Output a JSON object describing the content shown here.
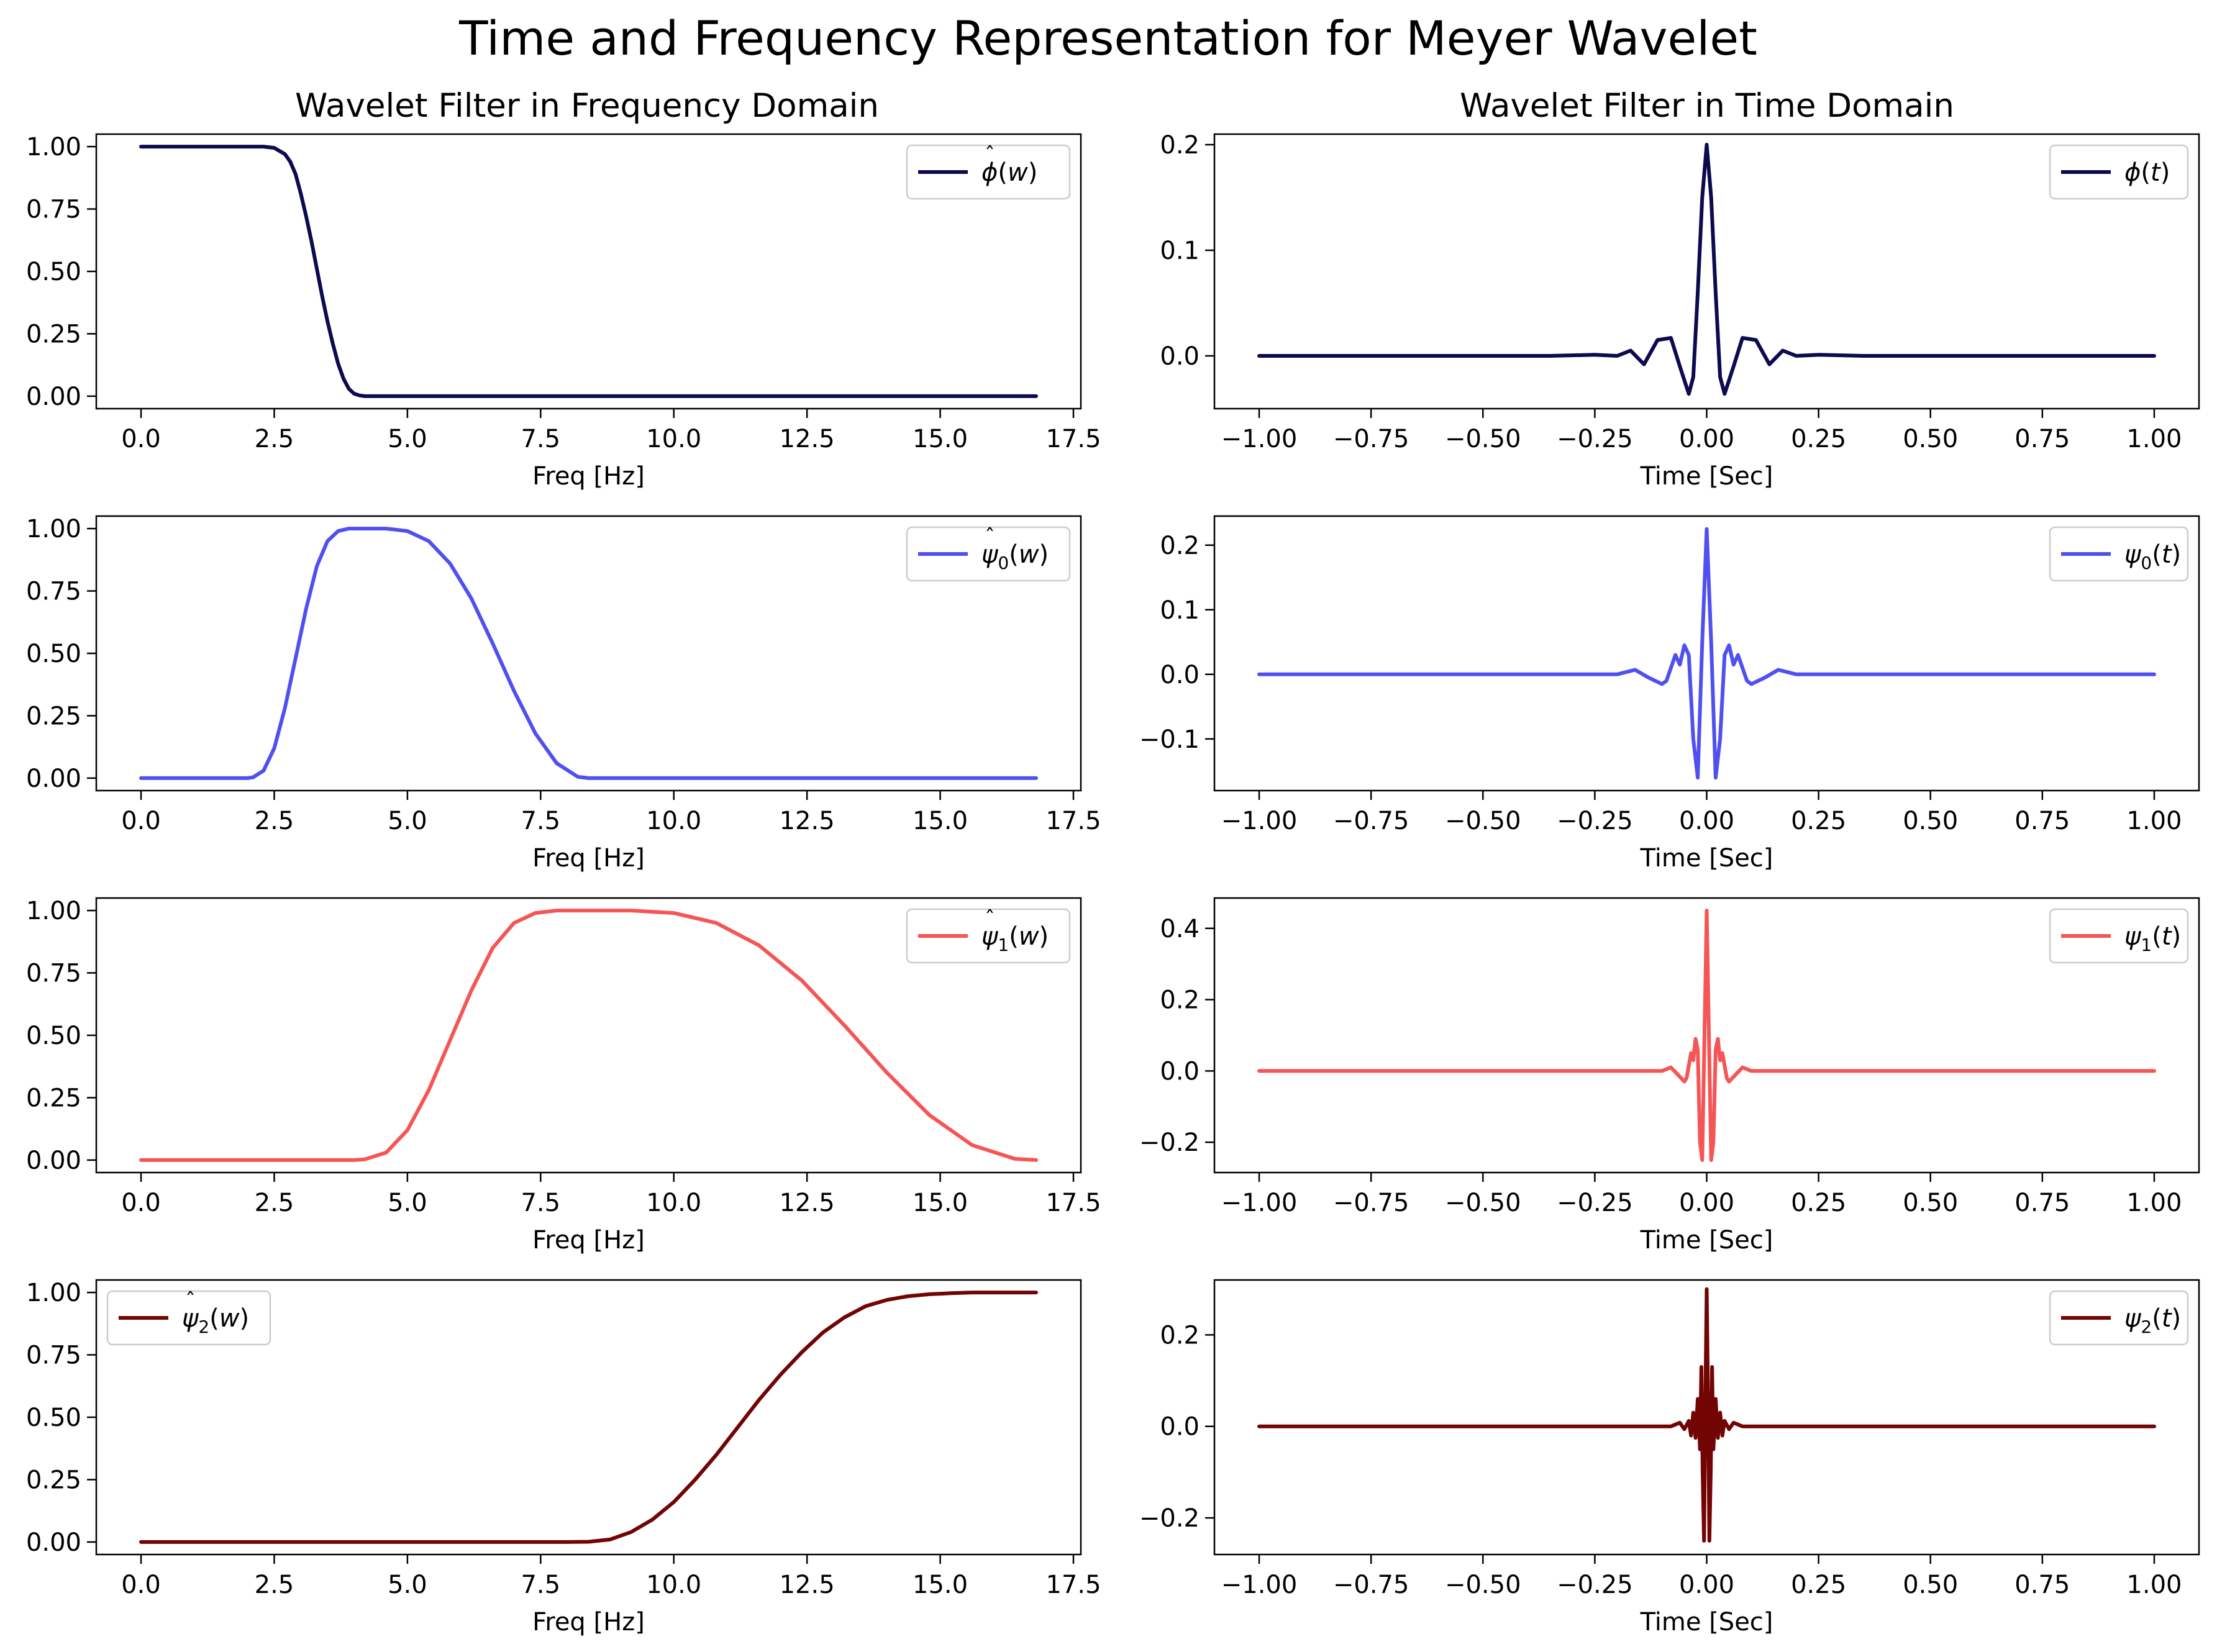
{
  "figure": {
    "title": "Time and Frequency Representation for Meyer Wavelet",
    "col_titles": [
      "Wavelet Filter in Frequency Domain",
      "Wavelet Filter in Time Domain"
    ]
  },
  "chart_data": [
    {
      "type": "line",
      "id": "phi_hat_w",
      "row": 0,
      "col": 0,
      "title": "Wavelet Filter in Frequency Domain",
      "xlabel": "Freq [Hz]",
      "ylabel": "",
      "xlim": [
        -0.84,
        17.64
      ],
      "ylim": [
        -0.05,
        1.05
      ],
      "xticks": [
        0,
        2.5,
        5,
        7.5,
        10,
        12.5,
        15,
        17.5
      ],
      "xtick_labels": [
        "0.0",
        "2.5",
        "5.0",
        "7.5",
        "10.0",
        "12.5",
        "15.0",
        "17.5"
      ],
      "yticks": [
        0,
        0.25,
        0.5,
        0.75,
        1.0
      ],
      "ytick_labels": [
        "0.00",
        "0.25",
        "0.50",
        "0.75",
        "1.00"
      ],
      "legend": "upper right",
      "grid": false,
      "series": [
        {
          "name": "phi_hat_w",
          "color": "#0d0a4f",
          "x": [
            0,
            1.0,
            2.0,
            2.1,
            2.3,
            2.5,
            2.7,
            2.8,
            2.9,
            3.0,
            3.1,
            3.2,
            3.3,
            3.4,
            3.5,
            3.6,
            3.7,
            3.8,
            3.9,
            4.0,
            4.1,
            4.2,
            4.5,
            6.0,
            8.0,
            10.0,
            12.0,
            14.0,
            16.8
          ],
          "y": [
            1,
            1,
            1,
            1,
            1,
            0.995,
            0.97,
            0.94,
            0.89,
            0.81,
            0.72,
            0.62,
            0.51,
            0.4,
            0.3,
            0.21,
            0.13,
            0.07,
            0.03,
            0.01,
            0.003,
            0,
            0,
            0,
            0,
            0,
            0,
            0,
            0
          ]
        }
      ]
    },
    {
      "type": "line",
      "id": "phi_t",
      "row": 0,
      "col": 1,
      "title": "Wavelet Filter in Time Domain",
      "xlabel": "Time [Sec]",
      "ylabel": "",
      "xlim": [
        -1.1,
        1.1
      ],
      "ylim": [
        -0.05,
        0.21
      ],
      "xticks": [
        -1,
        -0.75,
        -0.5,
        -0.25,
        0,
        0.25,
        0.5,
        0.75,
        1
      ],
      "xtick_labels": [
        "−1.00",
        "−0.75",
        "−0.50",
        "−0.25",
        "0.00",
        "0.25",
        "0.50",
        "0.75",
        "1.00"
      ],
      "yticks": [
        0,
        0.1,
        0.2
      ],
      "ytick_labels": [
        "0.0",
        "0.1",
        "0.2"
      ],
      "legend": "upper right",
      "grid": false,
      "series": [
        {
          "name": "phi_t",
          "color": "#0d0a4f",
          "x": [
            -1.0,
            -0.35,
            -0.25,
            -0.2,
            -0.17,
            -0.14,
            -0.11,
            -0.08,
            -0.06,
            -0.04,
            -0.03,
            -0.02,
            -0.01,
            0,
            0.01,
            0.02,
            0.03,
            0.04,
            0.06,
            0.08,
            0.11,
            0.14,
            0.17,
            0.2,
            0.25,
            0.35,
            1.0
          ],
          "y": [
            0,
            0,
            0.001,
            0.0,
            0.005,
            -0.008,
            0.015,
            0.017,
            -0.01,
            -0.036,
            -0.02,
            0.06,
            0.15,
            0.2,
            0.15,
            0.06,
            -0.02,
            -0.036,
            -0.01,
            0.017,
            0.015,
            -0.008,
            0.005,
            0.0,
            0.001,
            0,
            0
          ]
        }
      ]
    },
    {
      "type": "line",
      "id": "psi0_hat_w",
      "row": 1,
      "col": 0,
      "xlabel": "Freq [Hz]",
      "ylabel": "",
      "xlim": [
        -0.84,
        17.64
      ],
      "ylim": [
        -0.05,
        1.05
      ],
      "xticks": [
        0,
        2.5,
        5,
        7.5,
        10,
        12.5,
        15,
        17.5
      ],
      "xtick_labels": [
        "0.0",
        "2.5",
        "5.0",
        "7.5",
        "10.0",
        "12.5",
        "15.0",
        "17.5"
      ],
      "yticks": [
        0,
        0.25,
        0.5,
        0.75,
        1.0
      ],
      "ytick_labels": [
        "0.00",
        "0.25",
        "0.50",
        "0.75",
        "1.00"
      ],
      "legend": "upper right",
      "grid": false,
      "series": [
        {
          "name": "psi0_hat_w",
          "color": "#5050f0",
          "x": [
            0,
            1.0,
            2.0,
            2.1,
            2.3,
            2.5,
            2.7,
            2.9,
            3.1,
            3.3,
            3.5,
            3.7,
            3.9,
            4.2,
            4.6,
            5.0,
            5.4,
            5.8,
            6.2,
            6.6,
            7.0,
            7.4,
            7.8,
            8.2,
            8.4,
            10.0,
            13.0,
            16.8
          ],
          "y": [
            0,
            0,
            0,
            0.003,
            0.03,
            0.12,
            0.28,
            0.48,
            0.68,
            0.85,
            0.95,
            0.99,
            1,
            1,
            1,
            0.99,
            0.95,
            0.86,
            0.72,
            0.54,
            0.35,
            0.18,
            0.06,
            0.005,
            0,
            0,
            0,
            0
          ]
        }
      ]
    },
    {
      "type": "line",
      "id": "psi0_t",
      "row": 1,
      "col": 1,
      "xlabel": "Time [Sec]",
      "ylabel": "",
      "xlim": [
        -1.1,
        1.1
      ],
      "ylim": [
        -0.18,
        0.245
      ],
      "xticks": [
        -1,
        -0.75,
        -0.5,
        -0.25,
        0,
        0.25,
        0.5,
        0.75,
        1
      ],
      "xtick_labels": [
        "−1.00",
        "−0.75",
        "−0.50",
        "−0.25",
        "0.00",
        "0.25",
        "0.50",
        "0.75",
        "1.00"
      ],
      "yticks": [
        -0.1,
        0,
        0.1,
        0.2
      ],
      "ytick_labels": [
        "−0.1",
        "0.0",
        "0.1",
        "0.2"
      ],
      "legend": "upper right",
      "grid": false,
      "series": [
        {
          "name": "psi0_t",
          "color": "#5050f0",
          "x": [
            -1.0,
            -0.3,
            -0.2,
            -0.16,
            -0.13,
            -0.1,
            -0.09,
            -0.07,
            -0.06,
            -0.05,
            -0.04,
            -0.03,
            -0.02,
            -0.01,
            0,
            0.01,
            0.02,
            0.03,
            0.04,
            0.05,
            0.06,
            0.07,
            0.09,
            0.1,
            0.13,
            0.16,
            0.2,
            0.3,
            1.0
          ],
          "y": [
            0,
            0,
            0.0,
            0.007,
            -0.005,
            -0.015,
            -0.01,
            0.03,
            0.015,
            0.045,
            0.03,
            -0.1,
            -0.16,
            0.05,
            0.225,
            0.05,
            -0.16,
            -0.1,
            0.03,
            0.045,
            0.015,
            0.03,
            -0.01,
            -0.015,
            -0.005,
            0.007,
            0.0,
            0,
            0
          ]
        }
      ]
    },
    {
      "type": "line",
      "id": "psi1_hat_w",
      "row": 2,
      "col": 0,
      "xlabel": "Freq [Hz]",
      "ylabel": "",
      "xlim": [
        -0.84,
        17.64
      ],
      "ylim": [
        -0.05,
        1.05
      ],
      "xticks": [
        0,
        2.5,
        5,
        7.5,
        10,
        12.5,
        15,
        17.5
      ],
      "xtick_labels": [
        "0.0",
        "2.5",
        "5.0",
        "7.5",
        "10.0",
        "12.5",
        "15.0",
        "17.5"
      ],
      "yticks": [
        0,
        0.25,
        0.5,
        0.75,
        1.0
      ],
      "ytick_labels": [
        "0.00",
        "0.25",
        "0.50",
        "0.75",
        "1.00"
      ],
      "legend": "upper right",
      "grid": false,
      "series": [
        {
          "name": "psi1_hat_w",
          "color": "#f55555",
          "x": [
            0,
            2.0,
            4.0,
            4.2,
            4.6,
            5.0,
            5.4,
            5.8,
            6.2,
            6.6,
            7.0,
            7.4,
            7.8,
            8.4,
            9.2,
            10.0,
            10.8,
            11.6,
            12.4,
            13.2,
            14.0,
            14.8,
            15.6,
            16.4,
            16.8
          ],
          "y": [
            0,
            0,
            0,
            0.003,
            0.03,
            0.12,
            0.28,
            0.48,
            0.68,
            0.85,
            0.95,
            0.99,
            1,
            1,
            1,
            0.99,
            0.95,
            0.86,
            0.72,
            0.54,
            0.35,
            0.18,
            0.06,
            0.005,
            0
          ]
        }
      ]
    },
    {
      "type": "line",
      "id": "psi1_t",
      "row": 2,
      "col": 1,
      "xlabel": "Time [Sec]",
      "ylabel": "",
      "xlim": [
        -1.1,
        1.1
      ],
      "ylim": [
        -0.285,
        0.485
      ],
      "xticks": [
        -1,
        -0.75,
        -0.5,
        -0.25,
        0,
        0.25,
        0.5,
        0.75,
        1
      ],
      "xtick_labels": [
        "−1.00",
        "−0.75",
        "−0.50",
        "−0.25",
        "0.00",
        "0.25",
        "0.50",
        "0.75",
        "1.00"
      ],
      "yticks": [
        -0.2,
        0,
        0.2,
        0.4
      ],
      "ytick_labels": [
        "−0.2",
        "0.0",
        "0.2",
        "0.4"
      ],
      "legend": "upper right",
      "grid": false,
      "series": [
        {
          "name": "psi1_t",
          "color": "#f55555",
          "x": [
            -1.0,
            -0.15,
            -0.1,
            -0.08,
            -0.065,
            -0.05,
            -0.045,
            -0.035,
            -0.03,
            -0.025,
            -0.02,
            -0.015,
            -0.01,
            -0.005,
            0,
            0.005,
            0.01,
            0.015,
            0.02,
            0.025,
            0.03,
            0.035,
            0.045,
            0.05,
            0.065,
            0.08,
            0.1,
            0.15,
            1.0
          ],
          "y": [
            0,
            0,
            0.0,
            0.01,
            -0.01,
            -0.03,
            -0.02,
            0.05,
            0.03,
            0.09,
            0.06,
            -0.2,
            -0.25,
            0.1,
            0.45,
            0.1,
            -0.25,
            -0.2,
            0.06,
            0.09,
            0.03,
            0.05,
            -0.02,
            -0.03,
            -0.01,
            0.01,
            0.0,
            0,
            0
          ]
        }
      ]
    },
    {
      "type": "line",
      "id": "psi2_hat_w",
      "row": 3,
      "col": 0,
      "xlabel": "Freq [Hz]",
      "ylabel": "",
      "xlim": [
        -0.84,
        17.64
      ],
      "ylim": [
        -0.05,
        1.05
      ],
      "xticks": [
        0,
        2.5,
        5,
        7.5,
        10,
        12.5,
        15,
        17.5
      ],
      "xtick_labels": [
        "0.0",
        "2.5",
        "5.0",
        "7.5",
        "10.0",
        "12.5",
        "15.0",
        "17.5"
      ],
      "yticks": [
        0,
        0.25,
        0.5,
        0.75,
        1.0
      ],
      "ytick_labels": [
        "0.00",
        "0.25",
        "0.50",
        "0.75",
        "1.00"
      ],
      "legend": "upper left",
      "grid": false,
      "series": [
        {
          "name": "psi2_hat_w",
          "color": "#720404",
          "x": [
            0,
            4.0,
            8.0,
            8.4,
            8.8,
            9.2,
            9.6,
            10.0,
            10.4,
            10.8,
            11.2,
            11.6,
            12.0,
            12.4,
            12.8,
            13.2,
            13.6,
            14.0,
            14.4,
            14.8,
            15.2,
            15.6,
            16.0,
            16.4,
            16.8
          ],
          "y": [
            0,
            0,
            0,
            0.001,
            0.01,
            0.04,
            0.09,
            0.16,
            0.25,
            0.35,
            0.46,
            0.57,
            0.67,
            0.76,
            0.84,
            0.9,
            0.945,
            0.97,
            0.985,
            0.993,
            0.997,
            1,
            1,
            1,
            1
          ]
        }
      ]
    },
    {
      "type": "line",
      "id": "psi2_t",
      "row": 3,
      "col": 1,
      "xlabel": "Time [Sec]",
      "ylabel": "",
      "xlim": [
        -1.1,
        1.1
      ],
      "ylim": [
        -0.28,
        0.32
      ],
      "xticks": [
        -1,
        -0.75,
        -0.5,
        -0.25,
        0,
        0.25,
        0.5,
        0.75,
        1
      ],
      "xtick_labels": [
        "−1.00",
        "−0.75",
        "−0.50",
        "−0.25",
        "0.00",
        "0.25",
        "0.50",
        "0.75",
        "1.00"
      ],
      "yticks": [
        -0.2,
        0,
        0.2
      ],
      "ytick_labels": [
        "−0.2",
        "0.0",
        "0.2"
      ],
      "legend": "upper right",
      "grid": false,
      "series": [
        {
          "name": "psi2_t",
          "color": "#720404",
          "x": [
            -1.0,
            -0.12,
            -0.08,
            -0.06,
            -0.05,
            -0.04,
            -0.035,
            -0.03,
            -0.025,
            -0.02,
            -0.015,
            -0.012,
            -0.009,
            -0.006,
            -0.003,
            0,
            0.003,
            0.006,
            0.009,
            0.012,
            0.015,
            0.02,
            0.025,
            0.03,
            0.035,
            0.04,
            0.05,
            0.06,
            0.08,
            0.12,
            1.0
          ],
          "y": [
            0,
            0,
            0.0,
            0.008,
            -0.006,
            0.012,
            -0.02,
            0.03,
            -0.025,
            0.06,
            -0.05,
            0.13,
            -0.1,
            -0.25,
            0.05,
            0.3,
            0.05,
            -0.25,
            -0.1,
            0.13,
            -0.05,
            0.06,
            -0.025,
            0.03,
            -0.02,
            0.012,
            -0.006,
            0.008,
            0.0,
            0,
            0
          ]
        }
      ]
    }
  ]
}
